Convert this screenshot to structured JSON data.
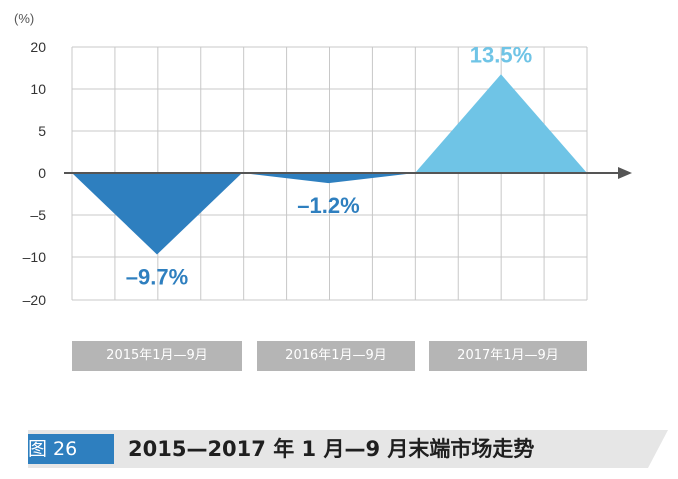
{
  "chart_data": {
    "type": "area",
    "y_unit_label": "(%)",
    "ylim": [
      -20,
      20
    ],
    "y_ticks": [
      "20",
      "10",
      "5",
      "0",
      "–5",
      "–10",
      "–20"
    ],
    "grid": true,
    "categories": [
      "2015年1月—9月",
      "2016年1月—9月",
      "2017年1月—9月"
    ],
    "series": [
      {
        "period": "2015年1月—9月",
        "value": -9.7,
        "label": "–9.7%",
        "color": "#2e7fbf"
      },
      {
        "period": "2016年1月—9月",
        "value": -1.2,
        "label": "–1.2%",
        "color": "#2e7fbf"
      },
      {
        "period": "2017年1月—9月",
        "value": 13.5,
        "label": "13.5%",
        "color": "#6fc4e6"
      }
    ]
  },
  "caption": {
    "tag": "图 26",
    "title": "2015—2017 年 1 月—9 月末端市场走势"
  }
}
